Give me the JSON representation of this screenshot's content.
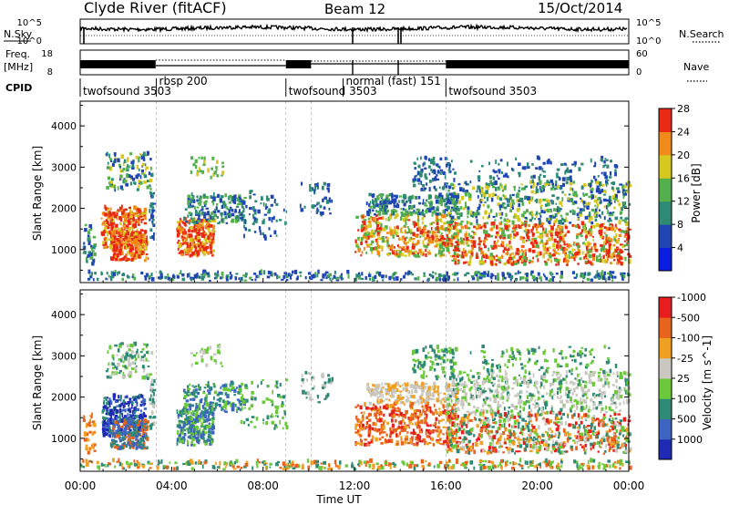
{
  "header": {
    "station": "Clyde River (fitACF)",
    "beam": "Beam 12",
    "date": "15/Oct/2014"
  },
  "left_labels": {
    "nsky": "N.Sky",
    "freq_line1": "Freq.",
    "freq_line2": "[MHz]",
    "cpid": "CPID"
  },
  "right_labels": {
    "nsearch": "N.Search",
    "nave": "Nave"
  },
  "noise_panel": {
    "left_ticks": [
      "10^5",
      "10^0"
    ],
    "right_ticks": [
      "10^5",
      "10^0"
    ]
  },
  "freq_panel": {
    "left_ticks": [
      "18",
      "8"
    ],
    "right_ticks": [
      "60",
      "0"
    ]
  },
  "cpid_segments": [
    {
      "label": "twofsound 3503",
      "start_hour": 0.0
    },
    {
      "label": "rbsp 200",
      "start_hour": 3.33
    },
    {
      "label": "twofsound 3503",
      "start_hour": 9.0
    },
    {
      "label": "normal (fast) 151",
      "start_hour": 11.5
    },
    {
      "label": "twofsound 3503",
      "start_hour": 16.0
    }
  ],
  "chart_data": [
    {
      "type": "heatmap",
      "name": "power",
      "ylabel": "Slant Range [km]",
      "ylim": [
        200,
        4600
      ],
      "yticks": [
        1000,
        2000,
        3000,
        4000
      ],
      "xlim": [
        0,
        24
      ],
      "colorbar_label": "Power [dB]",
      "colorbar_ticks": [
        "4",
        "8",
        "12",
        "16",
        "20",
        "24",
        "28"
      ],
      "colorbar_colors": [
        "#0a1ee0",
        "#2046b4",
        "#2e8a74",
        "#54b04c",
        "#d6c81e",
        "#f08a1a",
        "#e82a14"
      ]
    },
    {
      "type": "heatmap",
      "name": "velocity",
      "ylabel": "Slant Range [km]",
      "ylim": [
        200,
        4600
      ],
      "yticks": [
        1000,
        2000,
        3000,
        4000
      ],
      "xlim": [
        0,
        24
      ],
      "xlabel": "Time UT",
      "xticks": [
        "00:00",
        "04:00",
        "08:00",
        "12:00",
        "16:00",
        "20:00",
        "00:00"
      ],
      "colorbar_label": "Velocity [m s^-1]",
      "colorbar_ticks": [
        "1000",
        "500",
        "100",
        "25",
        "-25",
        "-100",
        "-500",
        "-1000"
      ],
      "colorbar_colors": [
        "#1e2ab4",
        "#3c64c0",
        "#2e8a74",
        "#6ac83a",
        "#c8c8c0",
        "#f0a020",
        "#e8641c",
        "#e81e1e"
      ]
    }
  ]
}
